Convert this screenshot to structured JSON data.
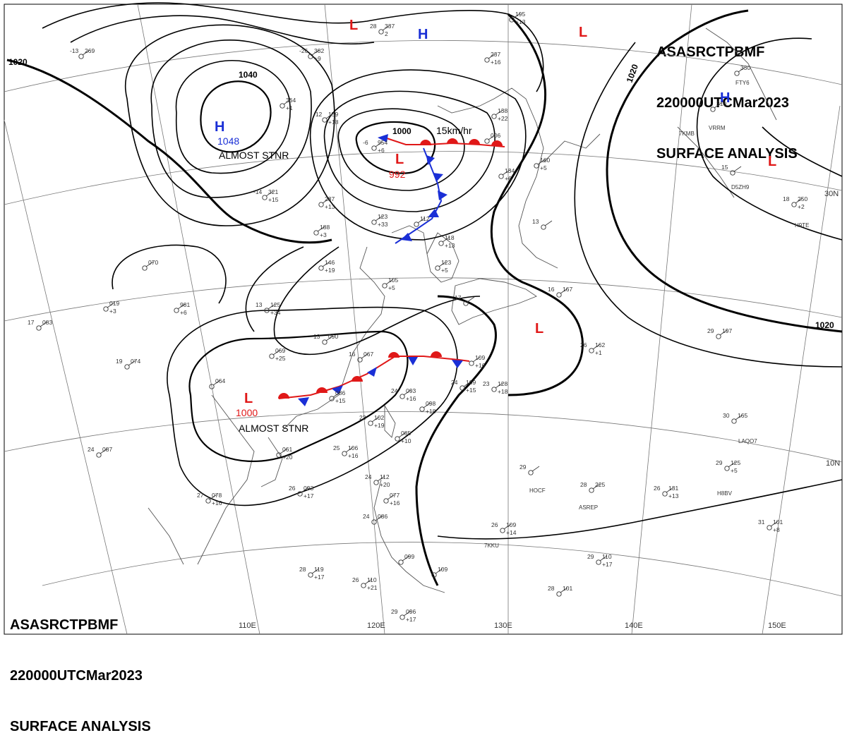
{
  "header": {
    "line1": [
      "ASAS",
      "RCTP",
      "BMF"
    ],
    "line2": [
      "220000UTC",
      "Mar",
      "2023"
    ],
    "line3": "SURFACE ANALYSIS"
  },
  "lon_labels": [
    "110E",
    "120E",
    "130E",
    "140E",
    "150E"
  ],
  "lat_labels": [
    "30N",
    "10N"
  ],
  "isobar_labels": [
    "1020",
    "1040",
    "1000",
    "1020",
    "1020"
  ],
  "pressure_centers": [
    {
      "type": "H",
      "value": "1048",
      "note": "ALMOST STNR"
    },
    {
      "type": "H",
      "value": "",
      "note": ""
    },
    {
      "type": "H",
      "value": "",
      "note": ""
    },
    {
      "type": "L",
      "value": "992",
      "note": "15km/hr"
    },
    {
      "type": "L",
      "value": "1000",
      "note": "ALMOST STNR"
    },
    {
      "type": "L",
      "value": "",
      "note": ""
    },
    {
      "type": "L",
      "value": "",
      "note": ""
    },
    {
      "type": "L",
      "value": "",
      "note": ""
    },
    {
      "type": "L",
      "value": "",
      "note": ""
    }
  ],
  "colors": {
    "high": "#1a2fd6",
    "low": "#e01818",
    "cold_front": "#1a2fd6",
    "warm_front": "#e01818",
    "isobar": "#000000",
    "coast": "#555555",
    "grid": "#777777"
  },
  "station_plots": [
    {
      "t": "28",
      "p": "337",
      "tend": "2"
    },
    {
      "t": "-13",
      "p": "269",
      "tend": ""
    },
    {
      "t": "-26",
      "p": "382",
      "tend": "+9"
    },
    {
      "t": "",
      "p": "364",
      "tend": "+1"
    },
    {
      "t": "-12",
      "p": "159",
      "tend": "+18"
    },
    {
      "t": "-6",
      "p": "954",
      "tend": "+6"
    },
    {
      "t": "",
      "p": "237",
      "tend": "+16"
    },
    {
      "t": "",
      "p": "138",
      "tend": "+22"
    },
    {
      "t": "",
      "p": "006",
      "tend": ""
    },
    {
      "t": "",
      "p": "134",
      "tend": "+6"
    },
    {
      "t": "",
      "p": "160",
      "tend": "+5"
    },
    {
      "t": "-14",
      "p": "321",
      "tend": "+15"
    },
    {
      "t": "",
      "p": "237",
      "tend": "+13"
    },
    {
      "t": "",
      "p": "123",
      "tend": "+33"
    },
    {
      "t": "",
      "p": "188",
      "tend": "+3"
    },
    {
      "t": "",
      "p": "112",
      "tend": ""
    },
    {
      "t": "",
      "p": "118",
      "tend": "+13"
    },
    {
      "t": "",
      "p": "123",
      "tend": "+5"
    },
    {
      "t": "",
      "p": "146",
      "tend": "+19"
    },
    {
      "t": "",
      "p": "070",
      "tend": ""
    },
    {
      "t": "",
      "p": "981",
      "tend": "+6"
    },
    {
      "t": "17",
      "p": "083",
      "tend": ""
    },
    {
      "t": "",
      "p": "019",
      "tend": "+3"
    },
    {
      "t": "13",
      "p": "125",
      "tend": "+34"
    },
    {
      "t": "",
      "p": "105",
      "tend": "+5"
    },
    {
      "t": "13",
      "p": "090",
      "tend": ""
    },
    {
      "t": "",
      "p": "069",
      "tend": "+25"
    },
    {
      "t": "16",
      "p": "067",
      "tend": ""
    },
    {
      "t": "",
      "p": "109",
      "tend": "+16"
    },
    {
      "t": "19",
      "p": "074",
      "tend": ""
    },
    {
      "t": "",
      "p": "064",
      "tend": ""
    },
    {
      "t": "",
      "p": "086",
      "tend": "+15"
    },
    {
      "t": "24",
      "p": "093",
      "tend": "+16"
    },
    {
      "t": "24",
      "p": "109",
      "tend": "+15"
    },
    {
      "t": "23",
      "p": "128",
      "tend": "+18"
    },
    {
      "t": "",
      "p": "098",
      "tend": "+18"
    },
    {
      "t": "23",
      "p": "102",
      "tend": "+19"
    },
    {
      "t": "",
      "p": "085",
      "tend": "+10"
    },
    {
      "t": "",
      "p": "061",
      "tend": "+20"
    },
    {
      "t": "24",
      "p": "087",
      "tend": ""
    },
    {
      "t": "25",
      "p": "106",
      "tend": "+16"
    },
    {
      "t": "27",
      "p": "078",
      "tend": "+16"
    },
    {
      "t": "26",
      "p": "093",
      "tend": "+17"
    },
    {
      "t": "24",
      "p": "112",
      "tend": "+20"
    },
    {
      "t": "",
      "p": "077",
      "tend": "+16"
    },
    {
      "t": "24",
      "p": "086",
      "tend": ""
    },
    {
      "t": "28",
      "p": "119",
      "tend": "+17"
    },
    {
      "t": "26",
      "p": "110",
      "tend": "+21"
    },
    {
      "t": "",
      "p": "099",
      "tend": ""
    },
    {
      "t": "",
      "p": "109",
      "tend": ""
    },
    {
      "t": "29",
      "p": "096",
      "tend": "+17"
    },
    {
      "t": "26",
      "p": "109",
      "tend": "+14"
    },
    {
      "t": "29",
      "p": "",
      "tend": ""
    },
    {
      "t": "28",
      "p": "225",
      "tend": ""
    },
    {
      "t": "26",
      "p": "131",
      "tend": "+13"
    },
    {
      "t": "29",
      "p": "125",
      "tend": "+5"
    },
    {
      "t": "31",
      "p": "101",
      "tend": "+8"
    },
    {
      "t": "29",
      "p": "110",
      "tend": "+17"
    },
    {
      "t": "28",
      "p": "101",
      "tend": ""
    },
    {
      "t": "26",
      "p": "162",
      "tend": "+1"
    },
    {
      "t": "29",
      "p": "197",
      "tend": ""
    },
    {
      "t": "30",
      "p": "165",
      "tend": ""
    },
    {
      "t": "16",
      "p": "167",
      "tend": ""
    },
    {
      "t": "17",
      "p": "",
      "tend": ""
    },
    {
      "t": "18",
      "p": "250",
      "tend": "+2"
    },
    {
      "t": "15",
      "p": "",
      "tend": ""
    },
    {
      "t": "",
      "p": "330",
      "tend": ""
    },
    {
      "t": "",
      "p": "310",
      "tend": ""
    },
    {
      "t": "",
      "p": "195",
      "tend": "+13"
    },
    {
      "t": "13",
      "p": "",
      "tend": ""
    }
  ],
  "station_ids": [
    "HOCF",
    "ASREP",
    "H8BV",
    "LAQO7",
    "7KKU",
    "D5ZH9",
    "FTY6",
    "7KMB",
    "VRRM",
    "H9TE"
  ]
}
